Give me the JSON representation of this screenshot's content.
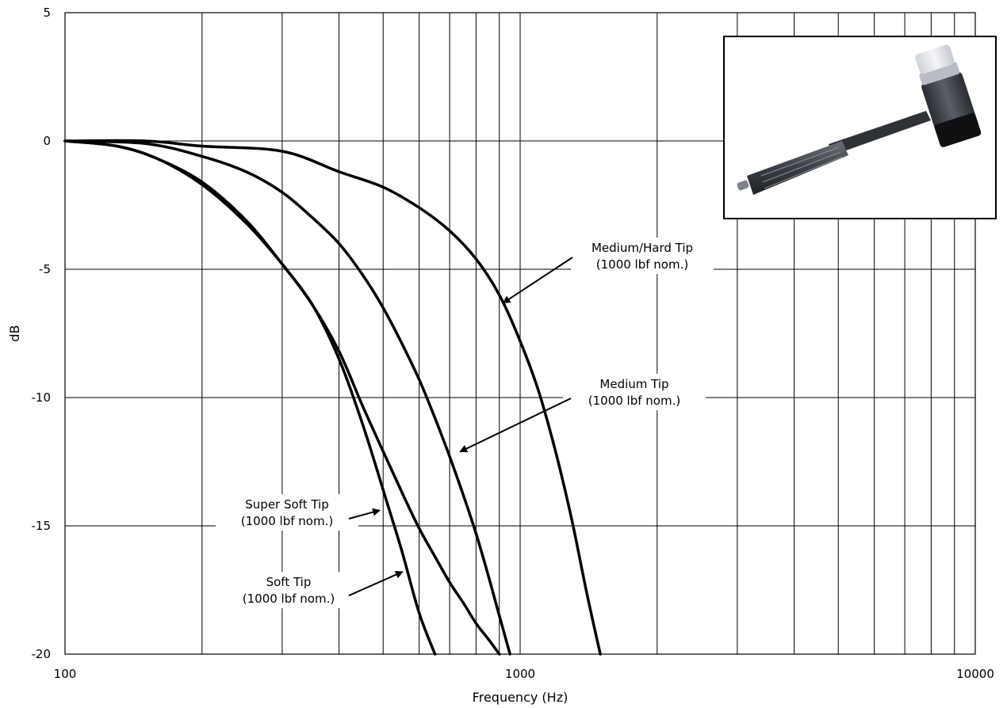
{
  "chart_data": {
    "type": "line",
    "xscale": "log",
    "xlim": [
      100,
      10000
    ],
    "ylim": [
      -20,
      5
    ],
    "xlabel": "Frequency (Hz)",
    "ylabel": "dB",
    "grid": true,
    "x_ticks": [
      {
        "value": 100,
        "label": "100"
      },
      {
        "value": 1000,
        "label": "1000"
      },
      {
        "value": 10000,
        "label": "10000"
      }
    ],
    "y_ticks": [
      {
        "value": 5,
        "label": "5"
      },
      {
        "value": 0,
        "label": "0"
      },
      {
        "value": -5,
        "label": "-5"
      },
      {
        "value": -10,
        "label": "-10"
      },
      {
        "value": -15,
        "label": "-15"
      },
      {
        "value": -20,
        "label": "-20"
      }
    ],
    "series": [
      {
        "name": "Medium/Hard Tip (1000 lbf nom.)",
        "x": [
          100,
          150,
          200,
          300,
          400,
          500,
          600,
          700,
          800,
          900,
          1000,
          1100,
          1200,
          1300,
          1400,
          1500
        ],
        "y": [
          0,
          0,
          -0.2,
          -0.4,
          -1.2,
          -1.8,
          -2.6,
          -3.5,
          -4.6,
          -6.0,
          -7.8,
          -9.8,
          -12.2,
          -14.8,
          -17.6,
          -20
        ]
      },
      {
        "name": "Medium Tip (1000 lbf nom.)",
        "x": [
          100,
          150,
          200,
          250,
          300,
          350,
          400,
          450,
          500,
          550,
          600,
          650,
          700,
          750,
          800,
          850,
          900,
          950
        ],
        "y": [
          0,
          -0.1,
          -0.6,
          -1.2,
          -2.0,
          -3.0,
          -4.0,
          -5.2,
          -6.5,
          -7.9,
          -9.3,
          -10.8,
          -12.3,
          -13.8,
          -15.3,
          -16.9,
          -18.5,
          -20
        ]
      },
      {
        "name": "Super Soft Tip (1000 lbf nom.)",
        "x": [
          100,
          130,
          160,
          200,
          250,
          300,
          350,
          400,
          450,
          500,
          550,
          600,
          650
        ],
        "y": [
          0,
          -0.2,
          -0.7,
          -1.6,
          -3.1,
          -4.8,
          -6.4,
          -8.5,
          -11.0,
          -13.6,
          -16.0,
          -18.4,
          -20
        ]
      },
      {
        "name": "Soft Tip (1000 lbf nom.)",
        "x": [
          100,
          130,
          160,
          200,
          250,
          300,
          350,
          400,
          450,
          500,
          550,
          600,
          650,
          700,
          750,
          800,
          850,
          900
        ],
        "y": [
          0,
          -0.2,
          -0.7,
          -1.7,
          -3.2,
          -4.8,
          -6.4,
          -8.2,
          -10.3,
          -12.1,
          -13.7,
          -15.1,
          -16.2,
          -17.2,
          -18.0,
          -18.8,
          -19.4,
          -20
        ]
      }
    ],
    "annotations": [
      {
        "lines": [
          "Medium/Hard Tip",
          "(1000 lbf nom.)"
        ],
        "target": [
          920,
          -6.3
        ]
      },
      {
        "lines": [
          "Medium Tip",
          "(1000 lbf nom.)"
        ],
        "target": [
          740,
          -12.1
        ]
      },
      {
        "lines": [
          "Super Soft Tip",
          "(1000 lbf nom.)"
        ],
        "target": [
          490,
          -14.4
        ]
      },
      {
        "lines": [
          "Soft Tip",
          "(1000 lbf nom.)"
        ],
        "target": [
          550,
          -16.8
        ]
      }
    ],
    "inset_image": "impact-hammer-photo"
  }
}
